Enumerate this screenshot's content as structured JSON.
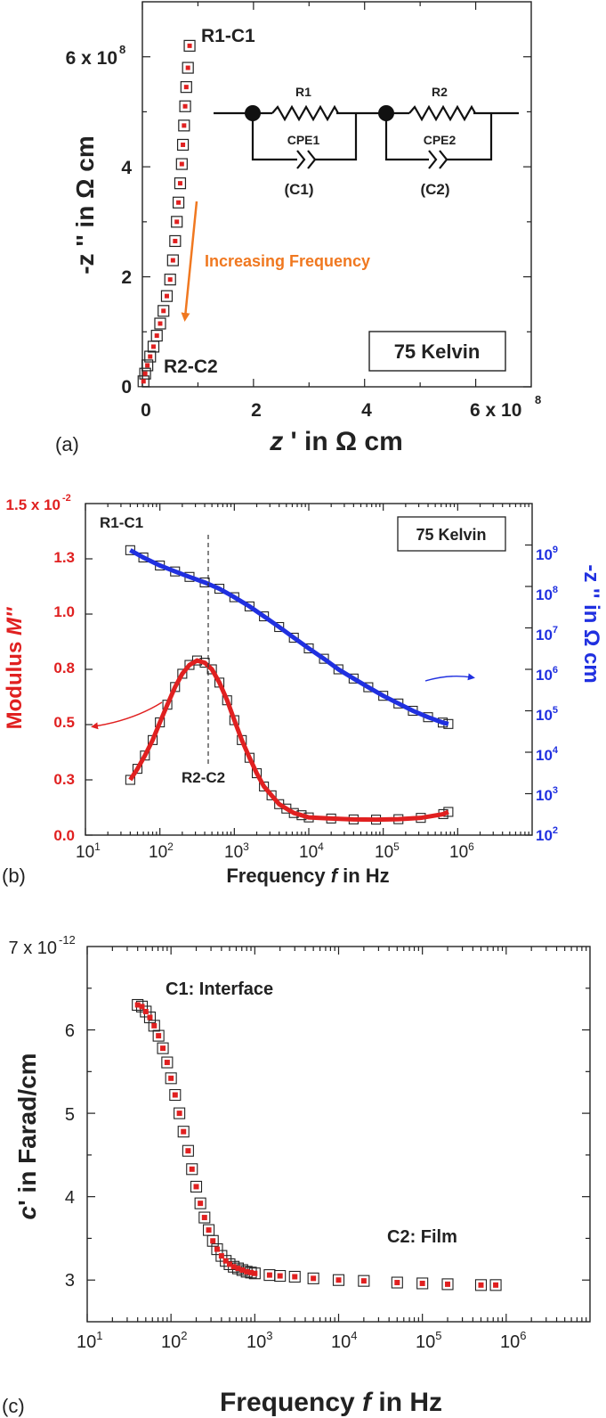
{
  "chart_data": [
    {
      "type": "scatter",
      "panel_label": "(a)",
      "x_ticks": [
        "0",
        "2",
        "4",
        "6 x 10"
      ],
      "x_tick_exp": "8",
      "y_ticks": [
        "0",
        "2",
        "4",
        "6 x 10"
      ],
      "y_tick_exp": "8",
      "xlabel_var": "z",
      "xlabel_rest": " ' in Ω cm",
      "ylabel_text": "-z '' in Ω cm",
      "xlim": [
        0,
        700000000.0
      ],
      "ylim": [
        0,
        700000000.0
      ],
      "annotations": {
        "r1c1": "R1-C1",
        "r2c2": "R2-C2",
        "arrow_text": "Increasing Frequency",
        "temp_box": "75 Kelvin"
      },
      "circuit": {
        "r1": "R1",
        "cpe1": "CPE1",
        "c1": "(C1)",
        "r2": "R2",
        "cpe2": "CPE2",
        "c2": "(C2)"
      },
      "series": [
        {
          "marker": "open-square",
          "x": [
            85000000.0,
            82000000.0,
            79000000.0,
            77000000.0,
            75000000.0,
            73000000.0,
            71000000.0,
            68000000.0,
            65000000.0,
            62000000.0,
            59000000.0,
            55000000.0,
            50000000.0,
            44000000.0,
            38000000.0,
            32000000.0,
            26000000.0,
            20000000.0,
            14000000.0,
            9000000.0,
            5000000.0,
            2000000.0
          ],
          "y": [
            620000000.0,
            580000000.0,
            545000000.0,
            510000000.0,
            475000000.0,
            440000000.0,
            405000000.0,
            370000000.0,
            335000000.0,
            300000000.0,
            265000000.0,
            230000000.0,
            195000000.0,
            165000000.0,
            138000000.0,
            115000000.0,
            93000000.0,
            73000000.0,
            55000000.0,
            39000000.0,
            24000000.0,
            10000000.0
          ]
        },
        {
          "marker": "red-fit",
          "x": [
            85000000.0,
            82000000.0,
            79000000.0,
            77000000.0,
            75000000.0,
            73000000.0,
            71000000.0,
            68000000.0,
            65000000.0,
            62000000.0,
            59000000.0,
            55000000.0,
            50000000.0,
            44000000.0,
            38000000.0,
            32000000.0,
            26000000.0,
            20000000.0,
            14000000.0,
            9000000.0,
            5000000.0,
            2000000.0
          ],
          "y": [
            620000000.0,
            580000000.0,
            545000000.0,
            510000000.0,
            475000000.0,
            440000000.0,
            405000000.0,
            370000000.0,
            335000000.0,
            300000000.0,
            265000000.0,
            230000000.0,
            195000000.0,
            165000000.0,
            138000000.0,
            115000000.0,
            93000000.0,
            73000000.0,
            55000000.0,
            39000000.0,
            24000000.0,
            10000000.0
          ]
        }
      ],
      "colors": {
        "fit": "#e02020",
        "arrow": "#f07820"
      }
    },
    {
      "type": "scatter",
      "panel_label": "(b)",
      "xscale": "log",
      "xlim": [
        10,
        10000000.0
      ],
      "y_left_lim": [
        0,
        0.015
      ],
      "y_right_log_lim": [
        100,
        10000000000.0
      ],
      "x_tick_base": "10",
      "x_tick_exps": [
        "1",
        "2",
        "3",
        "4",
        "5",
        "6"
      ],
      "y_left_ticks": [
        "0.0",
        "0.3",
        "0.5",
        "0.8",
        "1.0",
        "1.3"
      ],
      "y_left_top": "1.5 x 10",
      "y_left_top_exp": "-2",
      "y_right_base": "10",
      "y_right_exps": [
        "2",
        "3",
        "4",
        "5",
        "6",
        "7",
        "8",
        "9"
      ],
      "xlabel_pre": "Frequency ",
      "xlabel_var": "f",
      "xlabel_post": " in Hz",
      "ylabel_left_pre": "Modulus ",
      "ylabel_left_var": "M''",
      "ylabel_right": "-z '' in Ω cm",
      "annotations": {
        "r1c1": "R1-C1",
        "r2c2": "R2-C2",
        "temp_box": "75 Kelvin"
      },
      "series": [
        {
          "axis": "left",
          "marker": "open-square",
          "fit_color": "#e02020",
          "x": [
            40,
            50,
            63,
            80,
            100,
            126,
            160,
            200,
            250,
            316,
            400,
            500,
            630,
            800,
            1000,
            1260,
            1600,
            2000,
            2500,
            3160,
            4000,
            5000,
            6300,
            8000,
            10000,
            20000,
            40000,
            80000,
            160000,
            320000,
            640000,
            750000
          ],
          "y": [
            0.0025,
            0.003,
            0.0036,
            0.0043,
            0.0051,
            0.0059,
            0.0067,
            0.0073,
            0.0077,
            0.0079,
            0.0078,
            0.0075,
            0.0069,
            0.0061,
            0.0052,
            0.0043,
            0.0035,
            0.0028,
            0.0022,
            0.0018,
            0.0014,
            0.0012,
            0.001,
            0.0009,
            0.0008,
            0.00075,
            0.00071,
            0.0007,
            0.00072,
            0.00078,
            0.00095,
            0.00105
          ]
        },
        {
          "axis": "right",
          "marker": "open-square",
          "fit_color": "#2030e0",
          "x": [
            40,
            60,
            100,
            160,
            250,
            400,
            630,
            1000,
            1600,
            2500,
            4000,
            6300,
            10000,
            16000,
            25000,
            40000,
            63000,
            100000,
            160000,
            250000,
            400000,
            630000,
            750000
          ],
          "y": [
            750000000.0,
            500000000.0,
            320000000.0,
            230000000.0,
            170000000.0,
            125000000.0,
            88000000.0,
            55000000.0,
            33000000.0,
            19000000.0,
            10500000.0,
            5800000.0,
            3200000.0,
            1800000.0,
            1000000.0,
            600000.0,
            370000.0,
            230000.0,
            150000.0,
            100000.0,
            70000.0,
            52000.0,
            48000.0
          ]
        }
      ]
    },
    {
      "type": "scatter",
      "panel_label": "(c)",
      "xscale": "log",
      "xlim": [
        10,
        10000000.0
      ],
      "ylim": [
        2.5e-12,
        7e-12
      ],
      "x_tick_base": "10",
      "x_tick_exps": [
        "1",
        "2",
        "3",
        "4",
        "5",
        "6"
      ],
      "y_ticks": [
        "3",
        "4",
        "5",
        "6"
      ],
      "y_top": "7 x 10",
      "y_top_exp": "-12",
      "xlabel_pre": "Frequency ",
      "xlabel_var": "f",
      "xlabel_post": " in Hz",
      "ylabel_var": "c",
      "ylabel_rest": "' in Farad/cm",
      "annotations": {
        "c1": "C1: Interface",
        "c2": "C2: Film"
      },
      "series": [
        {
          "marker": "open-square",
          "fit_color": "#e02020",
          "x": [
            40,
            45,
            50,
            56,
            63,
            71,
            80,
            90,
            100,
            112,
            126,
            141,
            160,
            178,
            200,
            224,
            251,
            282,
            316,
            355,
            400,
            450,
            500,
            560,
            630,
            710,
            800,
            900,
            1000,
            1500,
            2000,
            3000,
            5000,
            10000,
            20000,
            50000,
            100000,
            200000,
            500000,
            750000
          ],
          "y": [
            6.3e-12,
            6.28e-12,
            6.22e-12,
            6.15e-12,
            6.05e-12,
            5.93e-12,
            5.78e-12,
            5.61e-12,
            5.42e-12,
            5.22e-12,
            5e-12,
            4.78e-12,
            4.55e-12,
            4.33e-12,
            4.12e-12,
            3.92e-12,
            3.75e-12,
            3.6e-12,
            3.47e-12,
            3.37e-12,
            3.29e-12,
            3.23e-12,
            3.19e-12,
            3.16e-12,
            3.14e-12,
            3.12e-12,
            3.1e-12,
            3.09e-12,
            3.08e-12,
            3.06e-12,
            3.05e-12,
            3.04e-12,
            3.02e-12,
            3e-12,
            2.99e-12,
            2.97e-12,
            2.96e-12,
            2.95e-12,
            2.94e-12,
            2.94e-12
          ]
        }
      ]
    }
  ]
}
